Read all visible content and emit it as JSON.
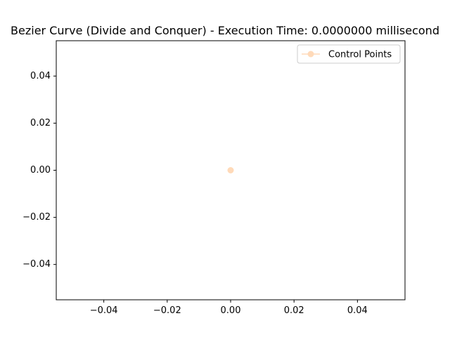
{
  "chart_data": {
    "type": "scatter",
    "title": "Bezier Curve (Divide and Conquer) - Execution Time: 0.0000000 millisecond",
    "xlabel": "",
    "ylabel": "",
    "xlim": [
      -0.055,
      0.055
    ],
    "ylim": [
      -0.055,
      0.055
    ],
    "x_ticks": [
      -0.04,
      -0.02,
      0.0,
      0.02,
      0.04
    ],
    "x_tick_labels": [
      "−0.04",
      "−0.02",
      "0.00",
      "0.02",
      "0.04"
    ],
    "y_ticks": [
      -0.04,
      -0.02,
      0.0,
      0.02,
      0.04
    ],
    "y_tick_labels": [
      "−0.04",
      "−0.02",
      "0.00",
      "0.02",
      "0.04"
    ],
    "grid": false,
    "legend_position": "top-right",
    "series": [
      {
        "name": "Control Points",
        "color": "#ffdab9",
        "marker": "circle",
        "points": [
          {
            "x": 0.0,
            "y": 0.0
          }
        ]
      }
    ]
  }
}
